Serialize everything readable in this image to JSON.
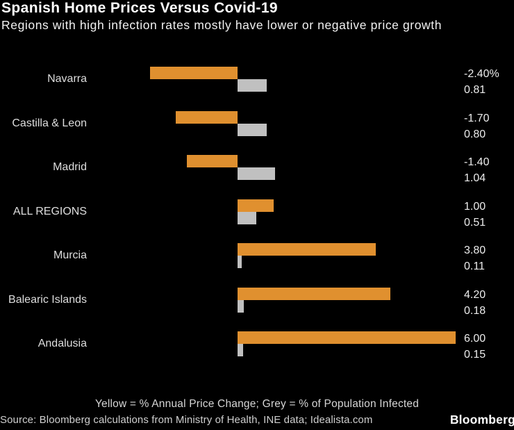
{
  "header": {
    "title": "Spanish Home Prices Versus Covid-19",
    "subtitle": "Regions with high infection rates mostly have lower or negative price growth"
  },
  "chart_data": {
    "type": "bar",
    "orientation": "horizontal",
    "title": "Spanish Home Prices Versus Covid-19",
    "subtitle": "Regions with high infection rates mostly have lower or negative price growth",
    "categories": [
      "Navarra",
      "Castilla & Leon",
      "Madrid",
      "ALL REGIONS",
      "Murcia",
      "Balearic Islands",
      "Andalusia"
    ],
    "series": [
      {
        "name": "% Annual Price Change",
        "color": "#E0902F",
        "values": [
          -2.4,
          -1.7,
          -1.4,
          1.0,
          3.8,
          4.2,
          6.0
        ],
        "labels": [
          "-2.40%",
          "-1.70",
          "-1.40",
          "1.00",
          "3.80",
          "4.20",
          "6.00"
        ]
      },
      {
        "name": "% of Population Infected",
        "color": "#C0C0C0",
        "values": [
          0.81,
          0.8,
          1.04,
          0.51,
          0.11,
          0.18,
          0.15
        ],
        "labels": [
          "0.81",
          "0.80",
          "1.04",
          "0.51",
          "0.11",
          "0.18",
          "0.15"
        ]
      }
    ],
    "xlim": [
      -2.4,
      6.0
    ],
    "baseline": 0,
    "grid": false,
    "legend_position": "bottom-note",
    "legend_note": "Yellow = % Annual Price Change; Grey = % of Population Infected"
  },
  "footer": {
    "legend": "Yellow = % Annual Price Change; Grey = % of Population Infected",
    "source": "Source: Bloomberg calculations from Ministry of Health, INE data; Idealista.com",
    "brand": "Bloomberg"
  },
  "colors": {
    "background": "#000000",
    "price_bar": "#E0902F",
    "infection_bar": "#C0C0C0",
    "text": "#ECECEC"
  }
}
